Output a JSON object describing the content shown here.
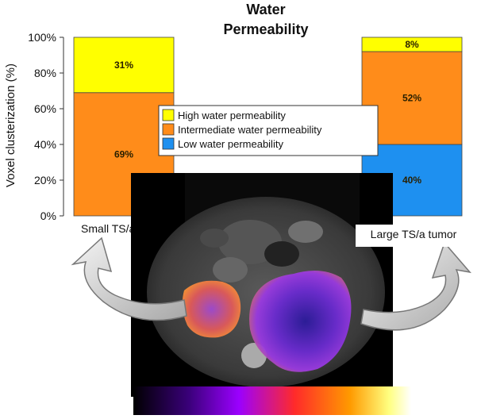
{
  "title_line1": "Water",
  "title_line2": "Permeability",
  "chart_data": {
    "type": "bar",
    "stacked": true,
    "title": "Water Permeability",
    "ylabel": "Voxel clusterization (%)",
    "ylim": [
      0,
      100
    ],
    "yticks": [
      "0%",
      "20%",
      "40%",
      "60%",
      "80%",
      "100%"
    ],
    "categories": [
      "Small TS/a tumor",
      "Large TS/a tumor"
    ],
    "series": [
      {
        "name": "Low water permeability",
        "color": "#1e90f0",
        "values": [
          0,
          40
        ],
        "labels": [
          "",
          "40%"
        ]
      },
      {
        "name": "Intermediate water permeability",
        "color": "#ff8c1a",
        "values": [
          69,
          52
        ],
        "labels": [
          "69%",
          "52%"
        ]
      },
      {
        "name": "High water permeability",
        "color": "#ffff00",
        "values": [
          31,
          8
        ],
        "labels": [
          "31%",
          "8%"
        ]
      }
    ],
    "legend": {
      "placement": "center",
      "entries": [
        "High water permeability",
        "Intermediate water permeability",
        "Low water permeability"
      ]
    }
  },
  "scan_image": {
    "description_icon": "mri-axial-slice",
    "colormap": [
      "#000000",
      "#3a007a",
      "#9b00ff",
      "#ff2a2a",
      "#ff9a00",
      "#ffff80",
      "#ffffff"
    ]
  },
  "arrows": {
    "left_icon": "curved-arrow-up-left",
    "right_icon": "curved-arrow-up-right"
  }
}
